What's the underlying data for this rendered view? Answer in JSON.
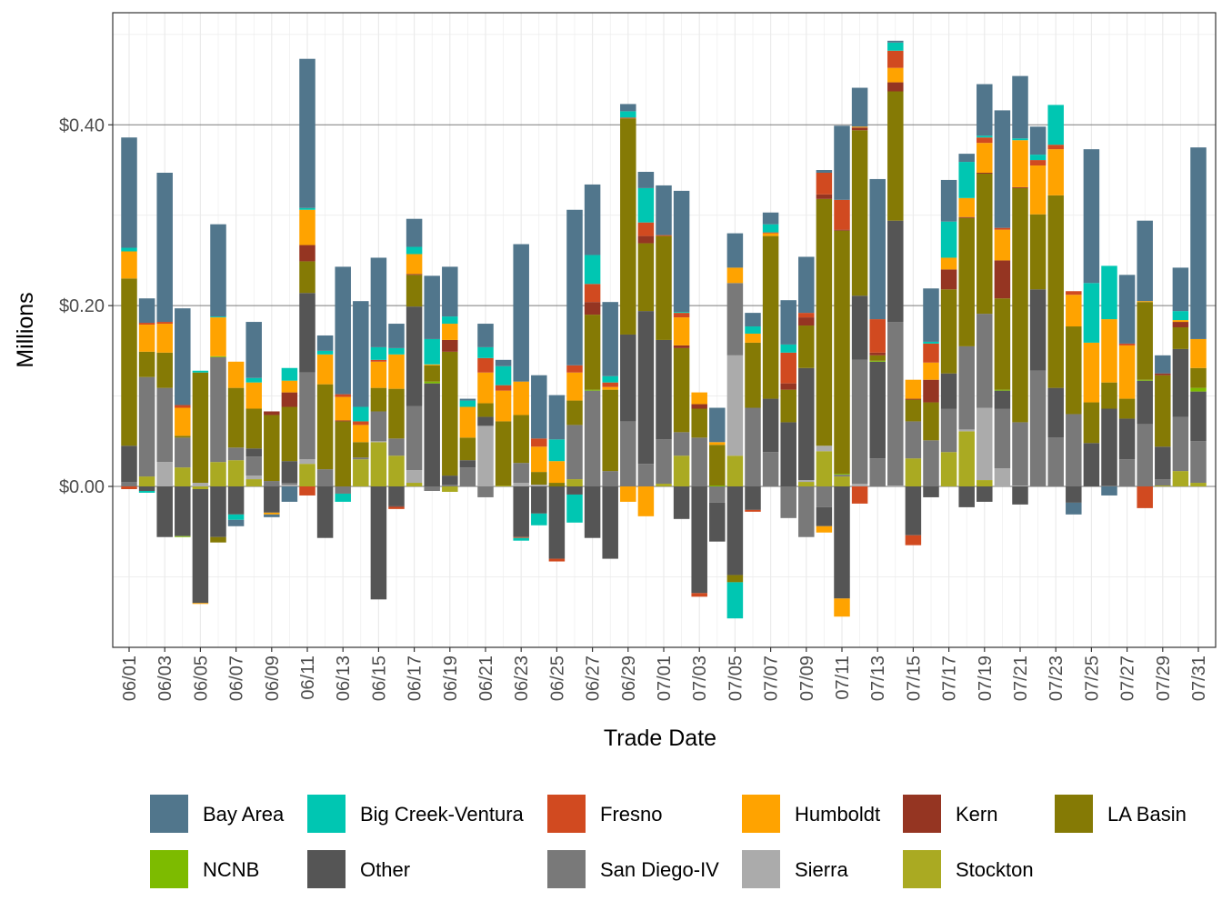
{
  "chart_data": {
    "type": "bar",
    "stacked": true,
    "xlabel": "Trade Date",
    "ylabel": "Millions",
    "ylim": [
      -0.178,
      0.524
    ],
    "yticks": [
      0.0,
      0.2,
      0.4
    ],
    "ytick_labels": [
      "$0.00",
      "$0.20",
      "$0.40"
    ],
    "grid": true,
    "legend_position": "bottom",
    "categories": [
      "06/01",
      "06/02",
      "06/03",
      "06/04",
      "06/05",
      "06/06",
      "06/07",
      "06/08",
      "06/09",
      "06/10",
      "06/11",
      "06/12",
      "06/13",
      "06/14",
      "06/15",
      "06/16",
      "06/17",
      "06/18",
      "06/19",
      "06/20",
      "06/21",
      "06/22",
      "06/23",
      "06/24",
      "06/25",
      "06/26",
      "06/27",
      "06/28",
      "06/29",
      "06/30",
      "07/01",
      "07/02",
      "07/03",
      "07/04",
      "07/05",
      "07/06",
      "07/07",
      "07/08",
      "07/09",
      "07/10",
      "07/11",
      "07/12",
      "07/13",
      "07/14",
      "07/15",
      "07/16",
      "07/17",
      "07/18",
      "07/19",
      "07/20",
      "07/21",
      "07/22",
      "07/23",
      "07/24",
      "07/25",
      "07/26",
      "07/27",
      "07/28",
      "07/29",
      "07/30",
      "07/31"
    ],
    "xtick_labels": [
      "06/01",
      "06/03",
      "06/05",
      "06/07",
      "06/09",
      "06/11",
      "06/13",
      "06/15",
      "06/17",
      "06/19",
      "06/21",
      "06/23",
      "06/25",
      "06/27",
      "06/29",
      "07/01",
      "07/03",
      "07/05",
      "07/07",
      "07/09",
      "07/11",
      "07/13",
      "07/15",
      "07/17",
      "07/19",
      "07/21",
      "07/23",
      "07/25",
      "07/27",
      "07/29",
      "07/31"
    ],
    "series": [
      {
        "name": "Bay Area",
        "color": "#51768C",
        "values": [
          0.122,
          0.027,
          0.165,
          0.107,
          0,
          0.102,
          -0.007,
          0.062,
          -0.003,
          -0.017,
          0.165,
          0.017,
          0.141,
          0.117,
          0.099,
          0.027,
          0.031,
          0.07,
          0.055,
          0.002,
          0.026,
          0.007,
          0.152,
          0.07,
          0.049,
          0.172,
          0.078,
          0.082,
          0.008,
          0.018,
          0.055,
          0.134,
          0,
          0.038,
          0.038,
          0.015,
          0.013,
          0.049,
          0.062,
          0.003,
          0.082,
          0.043,
          0.155,
          0.002,
          0,
          0.059,
          0.046,
          0.009,
          0.057,
          0.13,
          0.069,
          0.031,
          0,
          -0.013,
          0.148,
          -0.01,
          0.076,
          0.089,
          0.02,
          0.048,
          0.212
        ]
      },
      {
        "name": "Big Creek-Ventura",
        "color": "#00C6B2",
        "values": [
          0.004,
          -0.002,
          0,
          0,
          0.002,
          0.001,
          -0.006,
          0.005,
          0,
          0.014,
          0.002,
          0.004,
          -0.009,
          0.016,
          0.014,
          0.007,
          0.008,
          0.028,
          0.008,
          0.007,
          0.012,
          0.021,
          -0.003,
          -0.013,
          0.024,
          -0.031,
          0.032,
          0.007,
          0.007,
          0.038,
          0,
          0.001,
          0,
          0,
          -0.04,
          0.008,
          0.009,
          0.009,
          0,
          0,
          0,
          0,
          0,
          0.009,
          0,
          0.002,
          0.04,
          0.04,
          0.002,
          0,
          0.002,
          0.006,
          0.044,
          0,
          0.066,
          0.059,
          0,
          0,
          0,
          0.01,
          0
        ]
      },
      {
        "name": "Fresno",
        "color": "#D14A20",
        "values": [
          -0.003,
          0.002,
          0.002,
          0.003,
          0,
          0,
          0,
          0,
          0,
          0,
          -0.01,
          0,
          0.003,
          0.004,
          0.002,
          -0.002,
          0,
          0,
          0,
          0,
          0.016,
          0.006,
          -0.001,
          0.009,
          -0.003,
          0.008,
          0.02,
          0.005,
          0.001,
          0.015,
          0.001,
          0.005,
          -0.004,
          0,
          0,
          -0.002,
          0.001,
          0.034,
          0.005,
          0.024,
          0.033,
          -0.019,
          0.037,
          0.019,
          -0.011,
          0.021,
          0,
          0,
          0.006,
          0.002,
          0,
          0.006,
          0.005,
          0.004,
          0,
          0,
          0.002,
          -0.024,
          0,
          0,
          0
        ]
      },
      {
        "name": "Humboldt",
        "color": "#FFA300",
        "values": [
          0.03,
          0.03,
          0.032,
          0.031,
          -0.001,
          0.043,
          0.029,
          0.029,
          -0.002,
          0.013,
          0.039,
          0.033,
          0.026,
          0.019,
          0.029,
          0.038,
          0.022,
          0.001,
          0.018,
          0.034,
          0.034,
          0.034,
          0.037,
          0.028,
          0.024,
          0.031,
          0,
          0.003,
          -0.017,
          -0.033,
          0,
          0.031,
          0.013,
          0.003,
          0.017,
          0.01,
          0.003,
          0,
          0,
          -0.007,
          -0.02,
          0.001,
          0,
          0.016,
          0.021,
          0.019,
          0.013,
          0.021,
          0.033,
          0.034,
          0.052,
          0.054,
          0.051,
          0.035,
          0.066,
          0.07,
          0.059,
          0.001,
          0,
          0.002,
          0.032
        ]
      },
      {
        "name": "Kern",
        "color": "#953522",
        "values": [
          0,
          0,
          0,
          0,
          0,
          0,
          0,
          0,
          0.004,
          0.016,
          0.018,
          0,
          0.001,
          0,
          0,
          -0.001,
          0.001,
          0,
          0.013,
          0,
          0,
          0,
          0,
          0,
          0,
          0,
          0.014,
          0,
          0,
          0.008,
          0,
          0.003,
          0.005,
          0,
          0,
          0,
          0,
          0.007,
          0.009,
          0.005,
          0.001,
          0.003,
          0.003,
          0.01,
          0.001,
          0.025,
          0.022,
          0.001,
          0.001,
          0.042,
          0.001,
          0,
          0,
          0,
          0,
          0,
          0,
          0,
          0.002,
          0.006,
          0
        ]
      },
      {
        "name": "LA Basin",
        "color": "#857A05",
        "values": [
          0.185,
          0.028,
          0.039,
          0.002,
          0.122,
          -0.006,
          0.066,
          0.044,
          0.073,
          0.06,
          0.035,
          0.094,
          0.072,
          0.017,
          0.026,
          0.055,
          0.035,
          0.018,
          0.137,
          0.025,
          0.015,
          0.071,
          0.053,
          0.014,
          0.004,
          0.027,
          0.083,
          0.09,
          0.239,
          0.075,
          0.115,
          0.093,
          0.032,
          0.045,
          -0.008,
          0.072,
          0.18,
          0.036,
          0.047,
          0.273,
          0.269,
          0.183,
          0.006,
          0.143,
          0.024,
          0.042,
          0.093,
          0.142,
          0.155,
          0.101,
          0.259,
          0.083,
          0.213,
          0.097,
          0.045,
          0.029,
          0.022,
          0.086,
          0.079,
          0.024,
          0.022
        ]
      },
      {
        "name": "NCNB",
        "color": "#7DBB00",
        "values": [
          0,
          0,
          0,
          -0.001,
          0,
          0.001,
          0,
          0,
          0,
          0,
          0,
          0,
          0,
          0,
          0,
          0,
          0,
          0.002,
          0,
          0,
          0,
          0,
          0,
          0,
          0,
          0,
          0.001,
          0,
          0,
          0,
          0,
          0,
          0,
          0.001,
          0,
          0,
          0,
          0,
          0,
          0,
          0.001,
          0,
          0.001,
          0,
          0,
          0,
          0,
          0,
          0,
          0.001,
          0,
          0,
          0,
          0,
          0,
          0,
          0,
          0.001,
          0,
          0,
          0.004
        ]
      },
      {
        "name": "Other",
        "color": "#555555",
        "values": [
          0.04,
          -0.005,
          -0.056,
          -0.055,
          -0.126,
          -0.056,
          -0.031,
          0.009,
          -0.029,
          0.024,
          0.088,
          -0.057,
          0,
          0,
          -0.125,
          -0.022,
          0.11,
          0.114,
          0.01,
          0.008,
          0.01,
          0,
          -0.056,
          -0.03,
          -0.08,
          -0.009,
          -0.057,
          -0.08,
          0.096,
          0.169,
          0.11,
          -0.036,
          -0.118,
          -0.043,
          -0.098,
          -0.026,
          0.059,
          0.071,
          0.124,
          -0.021,
          -0.124,
          0.071,
          0.107,
          0.112,
          -0.054,
          -0.012,
          0.039,
          -0.023,
          -0.017,
          0.02,
          -0.02,
          0.09,
          0.055,
          -0.018,
          0.048,
          0.085,
          0.045,
          0.048,
          0.036,
          0.075,
          0.055
        ]
      },
      {
        "name": "San Diego-IV",
        "color": "#797979",
        "values": [
          0.005,
          0.11,
          0.082,
          0.033,
          0,
          0.116,
          0.014,
          0.021,
          0.006,
          0.002,
          0.096,
          0.019,
          -0.008,
          0.002,
          0.033,
          0.019,
          0.071,
          -0.005,
          0.002,
          0.021,
          -0.012,
          0,
          0.022,
          0,
          0,
          0.06,
          0.106,
          0.017,
          0.072,
          0.025,
          0.049,
          0.026,
          0.054,
          -0.018,
          0.08,
          0.087,
          0.038,
          -0.035,
          -0.056,
          -0.023,
          0.002,
          0.137,
          0.031,
          0.181,
          0.041,
          0.051,
          0.048,
          0.092,
          0.104,
          0.066,
          0.07,
          0.128,
          0.054,
          0.08,
          0,
          0.001,
          0.03,
          0.069,
          0.007,
          0.06,
          0.046
        ]
      },
      {
        "name": "Sierra",
        "color": "#ABABAB",
        "values": [
          0,
          0,
          0.027,
          0,
          0.004,
          0,
          0,
          0.004,
          0,
          0.002,
          0.005,
          0,
          0,
          0,
          0.001,
          0,
          0.014,
          0,
          0,
          0,
          0.067,
          0,
          0.004,
          0.002,
          0,
          0,
          0,
          0,
          0,
          0,
          0,
          0,
          0,
          0,
          0.111,
          0,
          0,
          0,
          0.002,
          0.006,
          0,
          0.003,
          0,
          0.001,
          0,
          0,
          0,
          0.002,
          0.08,
          0.02,
          0.001,
          0,
          0,
          0,
          0,
          0,
          0,
          0,
          0,
          0,
          0
        ]
      },
      {
        "name": "Stockton",
        "color": "#AAAA22",
        "values": [
          0,
          0.011,
          0,
          0.021,
          -0.003,
          0.027,
          0.029,
          0.008,
          0,
          0,
          0.025,
          0,
          0,
          0.03,
          0.049,
          0.034,
          0.004,
          0,
          -0.006,
          0,
          0,
          0.001,
          0,
          0,
          0,
          0.008,
          0,
          0,
          0,
          0,
          0.003,
          0.034,
          0,
          0,
          0.034,
          0,
          0,
          0,
          0.005,
          0.039,
          0.011,
          0,
          0,
          0,
          0.031,
          0,
          0.038,
          0.061,
          0.007,
          0,
          0,
          0,
          0,
          0,
          0,
          0,
          0,
          0,
          0.001,
          0.017,
          0.004
        ]
      }
    ]
  }
}
